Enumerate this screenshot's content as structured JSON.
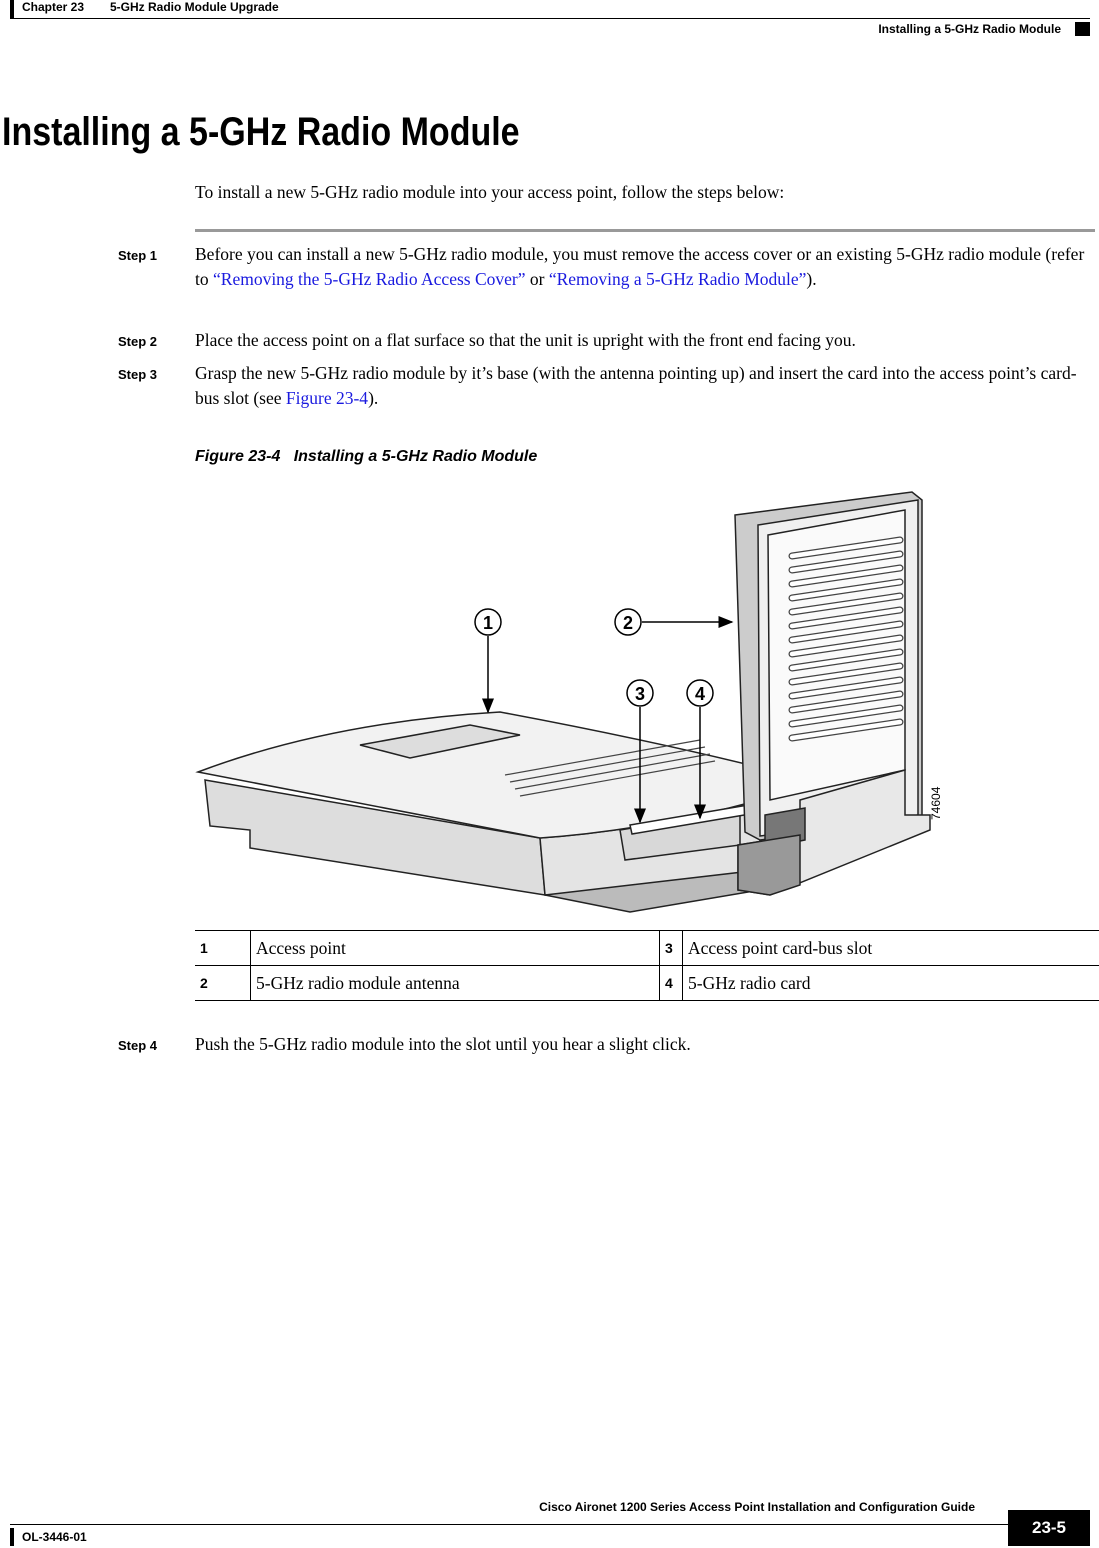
{
  "header": {
    "chapter": "Chapter 23",
    "chapter_title": "5-GHz Radio Module Upgrade",
    "section": "Installing a 5-GHz Radio Module"
  },
  "heading": "Installing a 5-GHz Radio Module",
  "intro": "To install a new 5-GHz radio module into your access point, follow the steps below:",
  "steps": [
    {
      "label": "Step 1",
      "parts": [
        {
          "text": "Before you can install a new 5-GHz radio module, you must remove the access cover or an existing 5-GHz radio module (refer to "
        },
        {
          "link": "“Removing the 5-GHz Radio Access Cover”"
        },
        {
          "text": " or "
        },
        {
          "link": "“Removing a 5-GHz Radio Module”"
        },
        {
          "text": ")."
        }
      ]
    },
    {
      "label": "Step 2",
      "parts": [
        {
          "text": "Place the access point on a flat surface so that the unit is upright with the front end facing you."
        }
      ]
    },
    {
      "label": "Step 3",
      "parts": [
        {
          "text": "Grasp the new 5-GHz radio module by it’s base (with the antenna pointing up) and insert the card into the access point’s card-bus slot (see "
        },
        {
          "link": "Figure 23-4"
        },
        {
          "text": ")."
        }
      ]
    }
  ],
  "figure": {
    "number": "Figure 23-4",
    "caption": "Installing a 5-GHz Radio Module",
    "callouts": [
      "1",
      "2",
      "3",
      "4"
    ],
    "art_id": "74604"
  },
  "table": {
    "rows": [
      [
        "1",
        "Access point",
        "3",
        "Access point card-bus slot"
      ],
      [
        "2",
        "5-GHz radio module antenna",
        "4",
        "5-GHz radio card"
      ]
    ]
  },
  "step4": {
    "label": "Step 4",
    "text": "Push the 5-GHz radio module into the slot until you hear a slight click."
  },
  "footer": {
    "guide": "Cisco Aironet 1200 Series Access Point Installation and Configuration Guide",
    "doc_id": "OL-3446-01",
    "page": "23-5"
  }
}
